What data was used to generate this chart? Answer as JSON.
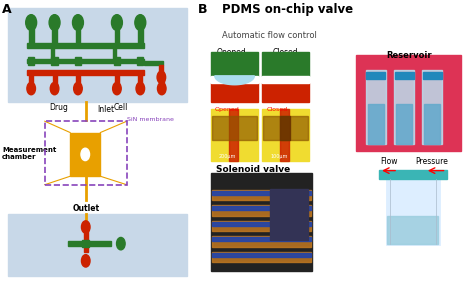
{
  "title_A": "A",
  "title_B": "B",
  "pdms_title": "PDMS on-chip valve",
  "pdms_subtitle": "Automatic flow control",
  "opened_label": "Opened",
  "closed_label": "Closed",
  "solenoid_label": "Solenoid valve",
  "reservoir_label": "Reservoir",
  "flow_label": "Flow",
  "pressure_label": "Pressure",
  "drug_label": "Drug",
  "cell_label": "Cell",
  "inlet_label": "Inlet",
  "sin_label": "SiN membrane",
  "measurement_label": "Measurement\nchamber",
  "outlet_label": "Outlet",
  "bg_blue": "#c8d8e8",
  "bg_white": "#ffffff",
  "green_color": "#2a7a2a",
  "red_color": "#cc2200",
  "orange_color": "#e8a000",
  "purple_color": "#8844bb",
  "yellow_color": "#f5e040",
  "teal_color": "#4db8b8",
  "brown_color": "#7a4500"
}
